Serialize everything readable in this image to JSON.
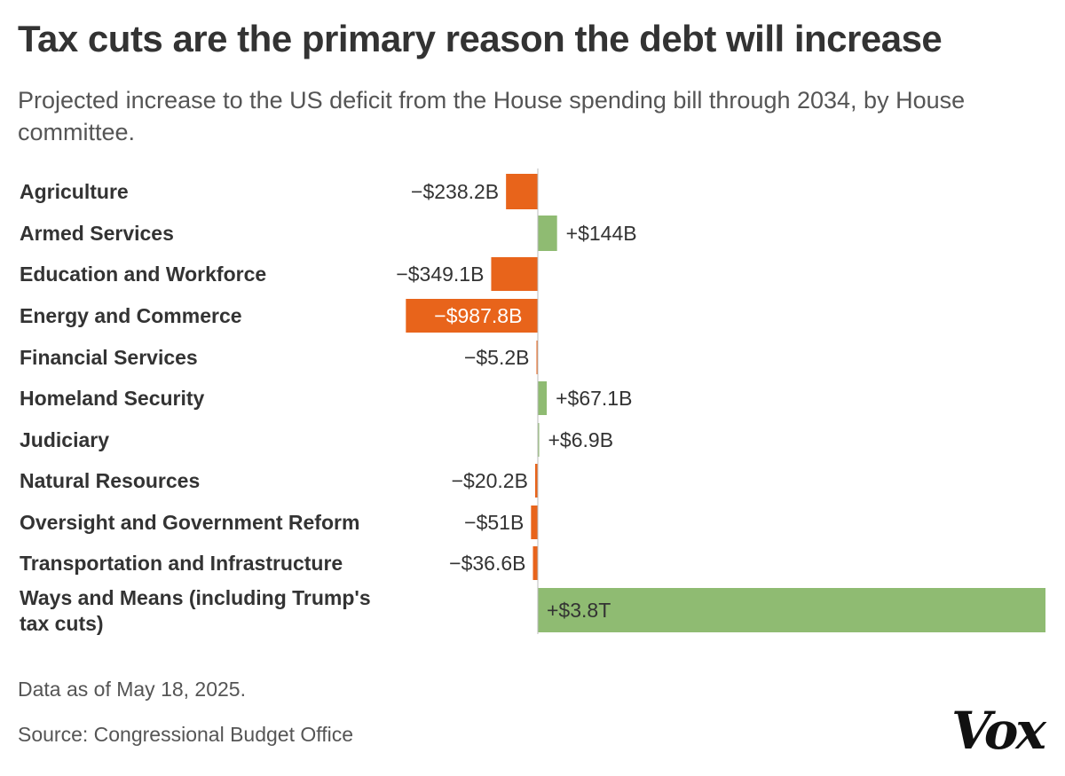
{
  "title": "Tax cuts are the primary reason the debt will increase",
  "subtitle": "Projected increase to the US deficit from the House spending bill through 2034, by House committee.",
  "notes": {
    "date": "Data as of May 18, 2025.",
    "source": "Source: Congressional Budget Office"
  },
  "logo": "Vox",
  "colors": {
    "negative": "#e8641b",
    "positive": "#8fbb72",
    "axis": "#bbbbbb"
  },
  "chart_data": {
    "type": "bar",
    "orientation": "horizontal",
    "title": "Tax cuts are the primary reason the debt will increase",
    "subtitle": "Projected increase to the US deficit from the House spending bill through 2034, by House committee.",
    "unit": "billions of dollars",
    "grid": false,
    "categories": [
      "Agriculture",
      "Armed Services",
      "Education and Workforce",
      "Energy and Commerce",
      "Financial Services",
      "Homeland Security",
      "Judiciary",
      "Natural Resources",
      "Oversight and Government Reform",
      "Transportation and Infrastructure",
      "Ways and Means (including Trump's tax cuts)"
    ],
    "values": [
      -238.2,
      144,
      -349.1,
      -987.8,
      -5.2,
      67.1,
      6.9,
      -20.2,
      -51,
      -36.6,
      3800
    ],
    "value_labels": [
      "−$238.2B",
      "+$144B",
      "−$349.1B",
      "−$987.8B",
      "−$5.2B",
      "+$67.1B",
      "+$6.9B",
      "−$20.2B",
      "−$51B",
      "−$36.6B",
      "+$3.8T"
    ]
  }
}
